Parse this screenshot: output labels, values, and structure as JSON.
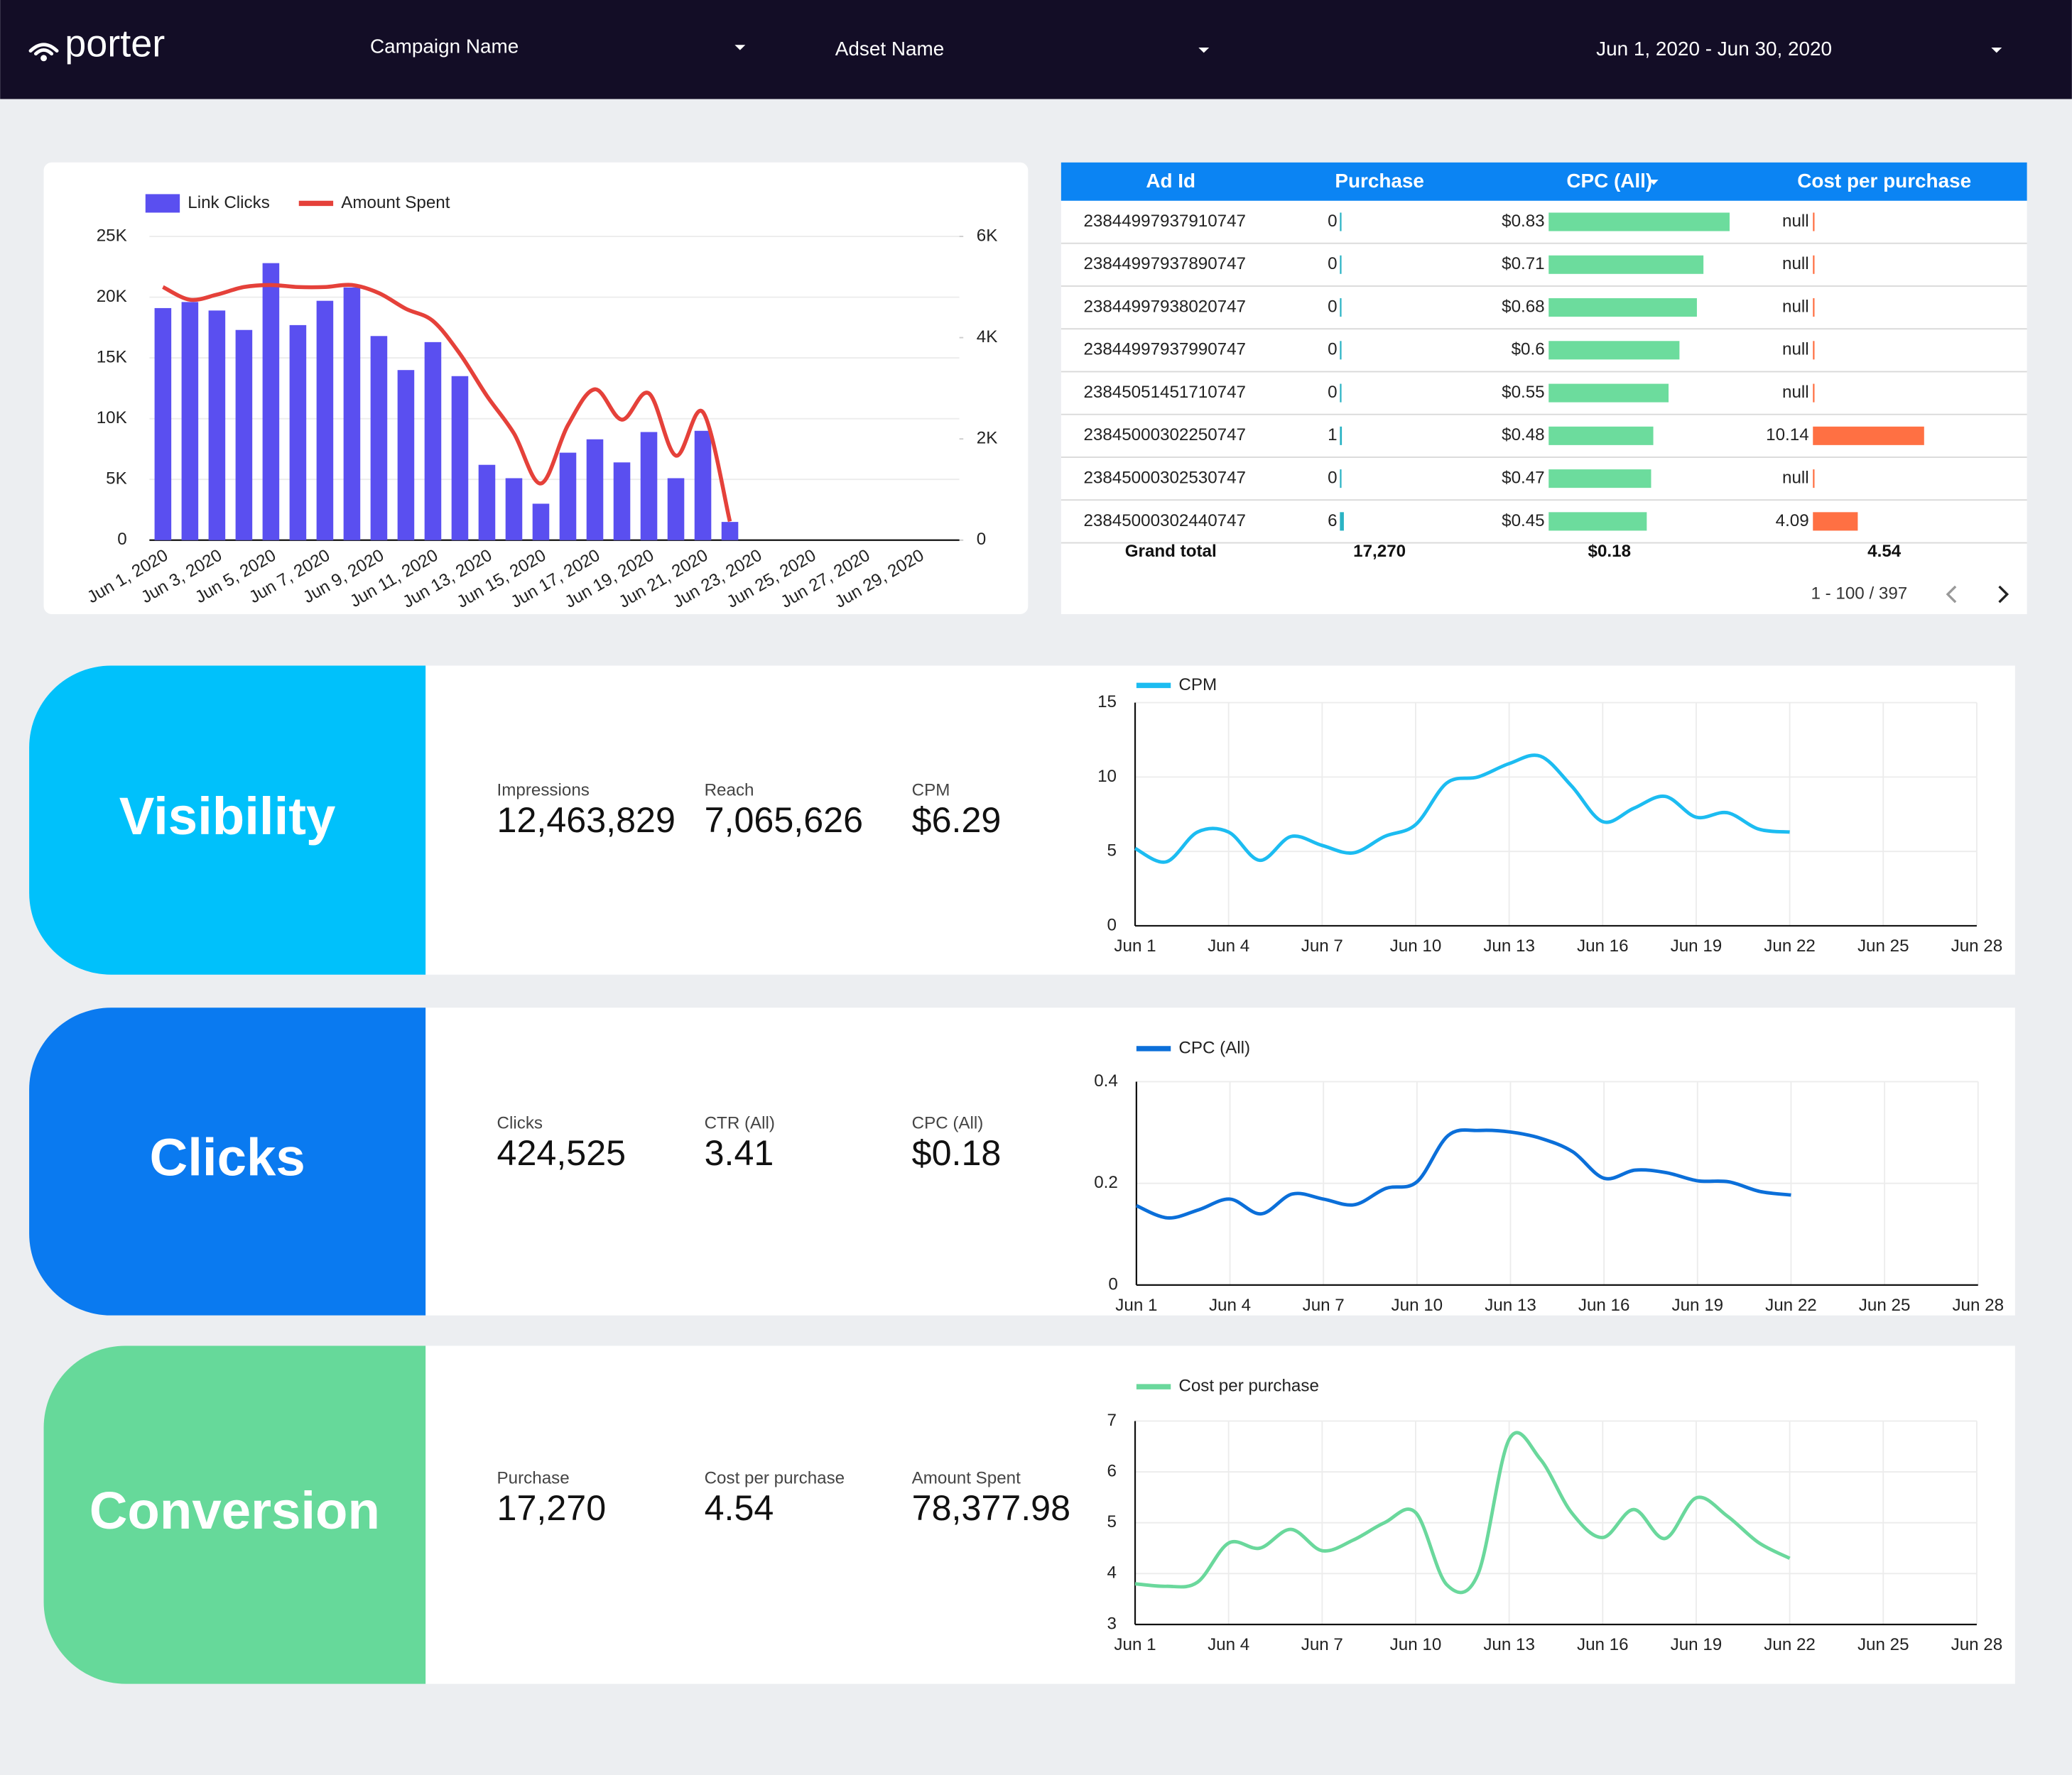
{
  "header": {
    "logo": "porter",
    "filters": [
      "Campaign Name",
      "Adset Name",
      "Jun 1, 2020 - Jun 30, 2020"
    ]
  },
  "table": {
    "columns": [
      "Ad Id",
      "Purchase",
      "CPC (All)",
      "Cost per purchase"
    ],
    "rows": [
      {
        "ad_id": "23844997937910747",
        "purchase": 0,
        "cpc": 0.83,
        "cpc_label": "$0.83",
        "cost_per_purchase": "null"
      },
      {
        "ad_id": "23844997937890747",
        "purchase": 0,
        "cpc": 0.71,
        "cpc_label": "$0.71",
        "cost_per_purchase": "null"
      },
      {
        "ad_id": "23844997938020747",
        "purchase": 0,
        "cpc": 0.68,
        "cpc_label": "$0.68",
        "cost_per_purchase": "null"
      },
      {
        "ad_id": "23844997937990747",
        "purchase": 0,
        "cpc": 0.6,
        "cpc_label": "$0.6",
        "cost_per_purchase": "null"
      },
      {
        "ad_id": "23845051451710747",
        "purchase": 0,
        "cpc": 0.55,
        "cpc_label": "$0.55",
        "cost_per_purchase": "null"
      },
      {
        "ad_id": "23845000302250747",
        "purchase": 1,
        "cpc": 0.48,
        "cpc_label": "$0.48",
        "cost_per_purchase": 10.14
      },
      {
        "ad_id": "23845000302530747",
        "purchase": 0,
        "cpc": 0.47,
        "cpc_label": "$0.47",
        "cost_per_purchase": "null"
      },
      {
        "ad_id": "23845000302440747",
        "purchase": 6,
        "cpc": 0.45,
        "cpc_label": "$0.45",
        "cost_per_purchase": 4.09
      }
    ],
    "grand_total": {
      "label": "Grand total",
      "purchase": "17,270",
      "cpc": "$0.18",
      "cost_per_purchase": "4.54"
    },
    "pagination": "1 - 100 / 397"
  },
  "scorecards": [
    {
      "title": "Visibility",
      "metrics": [
        {
          "label": "Impressions",
          "value": "12,463,829"
        },
        {
          "label": "Reach",
          "value": "7,065,626"
        },
        {
          "label": "CPM",
          "value": "$6.29"
        }
      ]
    },
    {
      "title": "Clicks",
      "metrics": [
        {
          "label": "Clicks",
          "value": "424,525"
        },
        {
          "label": "CTR (All)",
          "value": "3.41"
        },
        {
          "label": "CPC (All)",
          "value": "$0.18"
        }
      ]
    },
    {
      "title": "Conversion",
      "metrics": [
        {
          "label": "Purchase",
          "value": "17,270"
        },
        {
          "label": "Cost per purchase",
          "value": "4.54"
        },
        {
          "label": "Amount Spent",
          "value": "78,377.98"
        }
      ]
    }
  ],
  "chart_data": [
    {
      "type": "bar",
      "categories": [
        "Jun 1, 2020",
        null,
        "Jun 3, 2020",
        null,
        "Jun 5, 2020",
        null,
        "Jun 7, 2020",
        null,
        "Jun 9, 2020",
        null,
        "Jun 11, 2020",
        null,
        "Jun 13, 2020",
        null,
        "Jun 15, 2020",
        null,
        "Jun 17, 2020",
        null,
        "Jun 19, 2020",
        null,
        "Jun 21, 2020",
        null,
        "Jun 23, 2020",
        null,
        "Jun 25, 2020",
        null,
        "Jun 27, 2020",
        null,
        "Jun 29, 2020",
        null
      ],
      "series": [
        {
          "name": "Link Clicks",
          "color": "#5a4ff0",
          "values": [
            19100,
            19600,
            18900,
            17300,
            22800,
            17700,
            19700,
            20800,
            16800,
            14000,
            16300,
            13500,
            6200,
            5100,
            3000,
            7200,
            8300,
            6400,
            8900,
            5100,
            9000,
            1500,
            null,
            null,
            null,
            null,
            null,
            null,
            null,
            null
          ]
        },
        {
          "name": "Amount Spent",
          "type": "line",
          "axis": "y2",
          "color": "#e5413a",
          "values": [
            5000,
            4750,
            4850,
            5000,
            5040,
            5000,
            5000,
            5040,
            4880,
            4570,
            4330,
            3680,
            2850,
            2110,
            1120,
            2270,
            2980,
            2380,
            2900,
            1670,
            2530,
            370,
            null,
            null,
            null,
            null,
            null,
            null,
            null,
            null
          ]
        }
      ],
      "ylim": [
        0,
        25000
      ],
      "yticks": [
        0,
        {
          "value": 5000,
          "label": "5K"
        },
        {
          "value": 10000,
          "label": "10K"
        },
        {
          "value": 15000,
          "label": "15K"
        },
        {
          "value": 20000,
          "label": "20K"
        },
        {
          "value": 25000,
          "label": "25K"
        }
      ],
      "y2lim": [
        0,
        6000
      ],
      "y2ticks": [
        0,
        {
          "value": 2000,
          "label": "2K"
        },
        {
          "value": 4000,
          "label": "4K"
        },
        {
          "value": 6000,
          "label": "6K"
        }
      ],
      "grid": true,
      "legend": "top-left"
    },
    {
      "type": "line",
      "categories": [
        "Jun 1",
        null,
        null,
        "Jun 4",
        null,
        null,
        "Jun 7",
        null,
        null,
        "Jun 10",
        null,
        null,
        "Jun 13",
        null,
        null,
        "Jun 16",
        null,
        null,
        "Jun 19",
        null,
        null,
        "Jun 22",
        null,
        null,
        "Jun 25",
        null,
        null,
        "Jun 28"
      ],
      "series": [
        {
          "name": "CPM",
          "color": "#1cbcf1",
          "values": [
            5.2,
            4.3,
            6.3,
            6.3,
            4.4,
            6.0,
            5.4,
            4.9,
            6.0,
            6.8,
            9.6,
            10.0,
            10.9,
            11.4,
            9.4,
            7.0,
            7.9,
            8.7,
            7.3,
            7.6,
            6.5,
            6.3,
            null,
            null,
            null,
            null,
            null,
            null
          ]
        }
      ],
      "ylim": [
        0,
        15
      ],
      "yticks": [
        0,
        5,
        10,
        15
      ],
      "grid": true,
      "legend": "top-left"
    },
    {
      "type": "line",
      "categories": [
        "Jun 1",
        null,
        null,
        "Jun 4",
        null,
        null,
        "Jun 7",
        null,
        null,
        "Jun 10",
        null,
        null,
        "Jun 13",
        null,
        null,
        "Jun 16",
        null,
        null,
        "Jun 19",
        null,
        null,
        "Jun 22",
        null,
        null,
        "Jun 25",
        null,
        null,
        "Jun 28"
      ],
      "series": [
        {
          "name": "CPC (All)",
          "color": "#0b6fd9",
          "values": [
            0.156,
            0.132,
            0.148,
            0.169,
            0.14,
            0.179,
            0.169,
            0.158,
            0.19,
            0.203,
            0.294,
            0.304,
            0.301,
            0.288,
            0.262,
            0.21,
            0.226,
            0.221,
            0.205,
            0.203,
            0.184,
            0.177,
            null,
            null,
            null,
            null,
            null,
            null
          ]
        }
      ],
      "ylim": [
        0,
        0.4
      ],
      "yticks": [
        0,
        0.2,
        0.4
      ],
      "grid": true,
      "legend": "top-left"
    },
    {
      "type": "line",
      "categories": [
        "Jun 1",
        null,
        null,
        "Jun 4",
        null,
        null,
        "Jun 7",
        null,
        null,
        "Jun 10",
        null,
        null,
        "Jun 13",
        null,
        null,
        "Jun 16",
        null,
        null,
        "Jun 19",
        null,
        null,
        "Jun 22",
        null,
        null,
        "Jun 25",
        null,
        null,
        "Jun 28"
      ],
      "series": [
        {
          "name": "Cost per purchase",
          "color": "#6ad89c",
          "values": [
            3.8,
            3.75,
            3.83,
            4.6,
            4.5,
            4.87,
            4.45,
            4.66,
            5.0,
            5.2,
            3.78,
            3.99,
            6.64,
            6.25,
            5.2,
            4.71,
            5.26,
            4.69,
            5.49,
            5.13,
            4.61,
            4.3,
            null,
            null,
            null,
            null,
            null,
            null
          ]
        }
      ],
      "ylim": [
        3,
        7
      ],
      "yticks": [
        3,
        4,
        5,
        6,
        7
      ],
      "grid": true,
      "legend": "top-left"
    }
  ]
}
